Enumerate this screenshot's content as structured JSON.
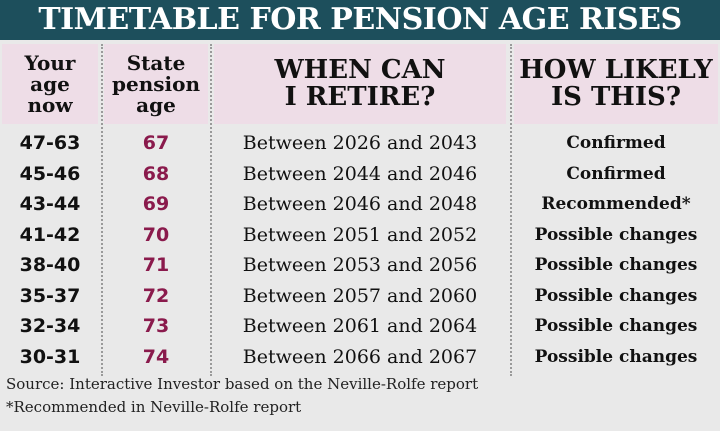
{
  "header": {
    "title": "TIMETABLE FOR PENSION AGE RISES"
  },
  "table": {
    "columns": [
      [
        "Your",
        "age",
        "now"
      ],
      [
        "State",
        "pension",
        "age"
      ],
      [
        "WHEN CAN",
        "I RETIRE?"
      ],
      [
        "HOW LIKELY",
        "IS THIS?"
      ]
    ],
    "rows": [
      [
        "47-63",
        "67",
        "Between 2026 and 2043",
        "Confirmed"
      ],
      [
        "45-46",
        "68",
        "Between 2044 and 2046",
        "Confirmed"
      ],
      [
        "43-44",
        "69",
        "Between 2046 and 2048",
        "Recommended*"
      ],
      [
        "41-42",
        "70",
        "Between 2051 and 2052",
        "Possible changes"
      ],
      [
        "38-40",
        "71",
        "Between 2053 and 2056",
        "Possible changes"
      ],
      [
        "35-37",
        "72",
        "Between 2057 and 2060",
        "Possible changes"
      ],
      [
        "32-34",
        "73",
        "Between 2061 and 2064",
        "Possible changes"
      ],
      [
        "30-31",
        "74",
        "Between 2066 and 2067",
        "Possible changes"
      ]
    ]
  },
  "footnotes": [
    "Source: Interactive Investor based on the Neville-Rolfe report",
    "*Recommended in Neville-Rolfe report"
  ]
}
